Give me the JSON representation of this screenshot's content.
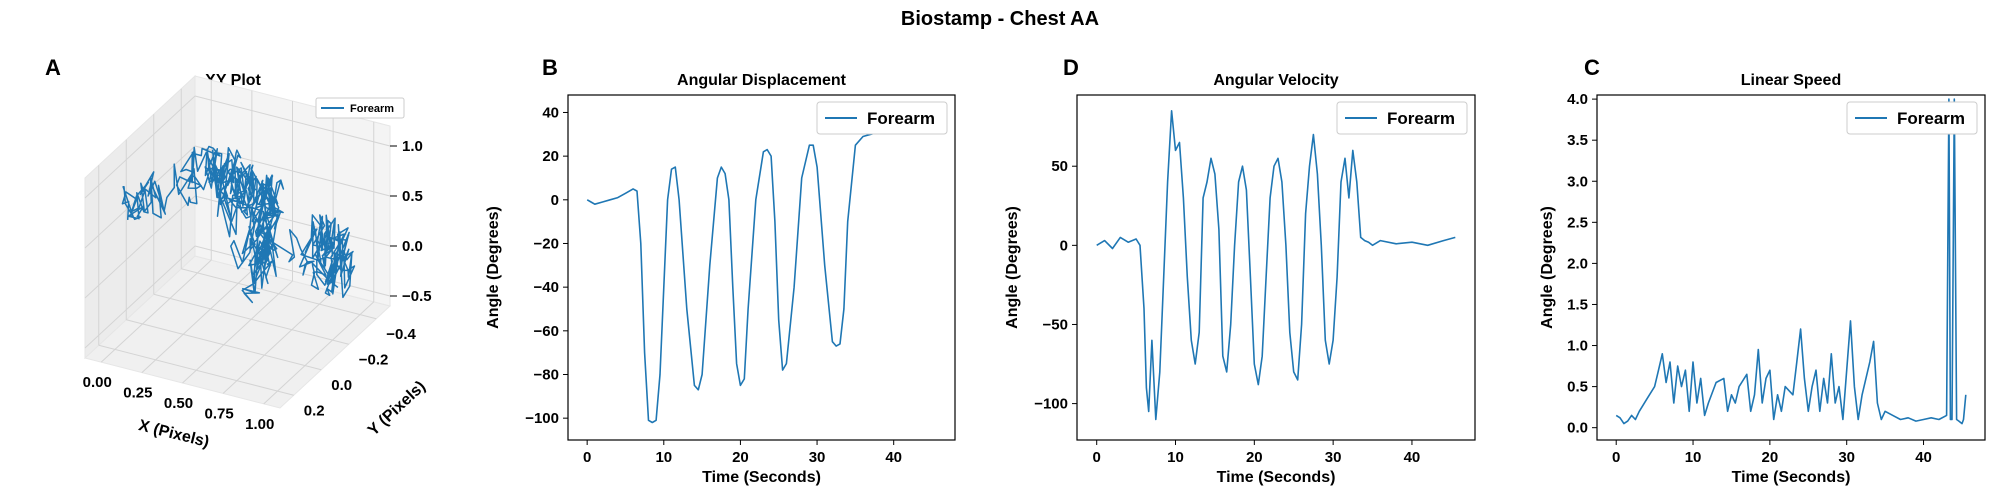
{
  "figure": {
    "title": "Biostamp - Chest AA"
  },
  "colors": {
    "series": "#1f77b4",
    "axis": "#000000",
    "grid3d": "#d0d0d0",
    "pane": "#f2f2f2"
  },
  "chart_data": [
    {
      "id": "xy",
      "panel_letter": "A",
      "type": "line3d",
      "title": "XY Plot",
      "xlabel": "X (Pixels)",
      "ylabel": "Y (Pixels)",
      "zlabel": "",
      "xticks": [
        "0.00",
        "0.25",
        "0.50",
        "0.75",
        "1.00"
      ],
      "yticks": [
        "-0.4",
        "-0.2",
        "0.0",
        "0.2"
      ],
      "zticks": [
        "-0.5",
        "0.0",
        "0.5",
        "1.0"
      ],
      "xlim": [
        -0.1,
        1.1
      ],
      "ylim": [
        -0.5,
        0.3
      ],
      "zlim": [
        -0.6,
        1.2
      ],
      "legend": "Forearm",
      "legend_position": "top-right",
      "grid": true,
      "series": [
        {
          "name": "Forearm",
          "note": "dense random-walk trajectory, x spans 0 to 1, y spans -0.4 to 0.2, z spans -0.5 to 1.0"
        }
      ]
    },
    {
      "id": "disp",
      "panel_letter": "B",
      "type": "line",
      "title": "Angular Displacement",
      "xlabel": "Time (Seconds)",
      "ylabel": "Angle (Degrees)",
      "xlim": [
        -2.5,
        48
      ],
      "ylim": [
        -110,
        48
      ],
      "xticks": [
        0,
        10,
        20,
        30,
        40
      ],
      "yticks": [
        -100,
        -80,
        -60,
        -40,
        -20,
        0,
        20,
        40
      ],
      "legend": "Forearm",
      "legend_position": "top-right",
      "series": [
        {
          "name": "Forearm",
          "x": [
            0,
            0.5,
            1,
            2,
            3,
            4,
            5,
            6,
            6.5,
            7,
            7.5,
            8,
            8.5,
            9,
            9.5,
            10,
            10.5,
            11,
            11.5,
            12,
            13,
            14,
            14.5,
            15,
            16,
            17,
            17.5,
            18,
            18.5,
            19,
            19.5,
            20,
            20.5,
            21,
            22,
            23,
            23.5,
            24,
            24.5,
            25,
            25.5,
            26,
            27,
            28,
            29,
            29.5,
            30,
            31,
            32,
            32.5,
            33,
            33.5,
            34,
            35,
            36,
            37,
            38,
            40,
            43,
            45.5
          ],
          "y": [
            0,
            -1,
            -2,
            -1,
            0,
            1,
            3,
            5,
            4,
            -20,
            -70,
            -101,
            -102,
            -101,
            -80,
            -40,
            0,
            14,
            15,
            0,
            -50,
            -85,
            -87,
            -80,
            -30,
            10,
            15,
            12,
            0,
            -40,
            -75,
            -85,
            -82,
            -50,
            0,
            22,
            23,
            20,
            -10,
            -55,
            -78,
            -75,
            -40,
            10,
            25,
            25,
            15,
            -30,
            -65,
            -67,
            -66,
            -50,
            -10,
            25,
            29,
            30,
            31,
            33,
            35,
            38
          ]
        }
      ]
    },
    {
      "id": "vel",
      "panel_letter": "D",
      "type": "line",
      "title": "Angular Velocity",
      "xlabel": "Time (Seconds)",
      "ylabel": "Angle (Degrees)",
      "xlim": [
        -2.5,
        48
      ],
      "ylim": [
        -123,
        95
      ],
      "xticks": [
        0,
        10,
        20,
        30,
        40
      ],
      "yticks": [
        -100,
        -50,
        0,
        50
      ],
      "legend": "Forearm",
      "legend_position": "top-right",
      "series": [
        {
          "name": "Forearm",
          "x": [
            0,
            1,
            2,
            3,
            4,
            5,
            5.5,
            6,
            6.3,
            6.6,
            7,
            7.5,
            8,
            8.5,
            9,
            9.5,
            10,
            10.5,
            11,
            11.5,
            12,
            12.5,
            13,
            13.5,
            14,
            14.5,
            15,
            15.5,
            16,
            16.5,
            17,
            17.5,
            18,
            18.5,
            19,
            19.5,
            20,
            20.5,
            21,
            21.5,
            22,
            22.5,
            23,
            23.5,
            24,
            24.5,
            25,
            25.5,
            26,
            26.5,
            27,
            27.5,
            28,
            28.5,
            29,
            29.5,
            30,
            30.5,
            31,
            31.5,
            32,
            32.5,
            33,
            33.5,
            34,
            34.5,
            35,
            36,
            38,
            40,
            42,
            44,
            45.5
          ],
          "y": [
            0,
            3,
            -2,
            5,
            2,
            4,
            0,
            -40,
            -90,
            -105,
            -60,
            -110,
            -80,
            -20,
            40,
            85,
            60,
            65,
            30,
            -20,
            -60,
            -75,
            -55,
            30,
            40,
            55,
            45,
            10,
            -70,
            -80,
            -50,
            0,
            40,
            50,
            35,
            -20,
            -75,
            -88,
            -70,
            -20,
            30,
            50,
            55,
            40,
            0,
            -55,
            -80,
            -85,
            -50,
            20,
            50,
            70,
            45,
            0,
            -60,
            -75,
            -60,
            -20,
            40,
            55,
            30,
            60,
            40,
            5,
            3,
            2,
            0,
            3,
            1,
            2,
            0,
            3,
            5
          ]
        }
      ]
    },
    {
      "id": "speed",
      "panel_letter": "C",
      "type": "line",
      "title": "Linear Speed",
      "xlabel": "Time (Seconds)",
      "ylabel": "Angle (Degrees)",
      "xlim": [
        -2.5,
        48
      ],
      "ylim": [
        -0.15,
        4.05
      ],
      "xticks": [
        0,
        10,
        20,
        30,
        40
      ],
      "yticks": [
        0.0,
        0.5,
        1.0,
        1.5,
        2.0,
        2.5,
        3.0,
        3.5,
        4.0
      ],
      "legend": "Forearm",
      "legend_position": "top-right",
      "series": [
        {
          "name": "Forearm",
          "x": [
            0,
            0.5,
            1,
            1.5,
            2,
            2.5,
            3,
            4,
            5,
            5.5,
            6,
            6.5,
            7,
            7.5,
            8,
            8.5,
            9,
            9.5,
            10,
            10.5,
            11,
            11.5,
            12,
            13,
            14,
            14.5,
            15,
            15.5,
            16,
            17,
            17.5,
            18,
            18.5,
            19,
            19.5,
            20,
            20.5,
            21,
            21.5,
            22,
            23,
            23.5,
            24,
            24.5,
            25,
            25.5,
            26,
            26.5,
            27,
            27.5,
            28,
            28.5,
            29,
            29.5,
            30,
            30.5,
            31,
            31.5,
            32,
            33,
            33.5,
            34,
            34.5,
            35,
            36,
            37,
            38,
            39,
            40,
            41,
            42,
            43,
            43.3,
            43.5,
            43.7,
            44,
            44.3,
            44.6,
            45,
            45.2,
            45.5
          ],
          "y": [
            0.15,
            0.12,
            0.05,
            0.08,
            0.15,
            0.1,
            0.2,
            0.35,
            0.5,
            0.7,
            0.9,
            0.55,
            0.8,
            0.3,
            0.75,
            0.5,
            0.7,
            0.2,
            0.8,
            0.3,
            0.6,
            0.15,
            0.3,
            0.55,
            0.6,
            0.2,
            0.4,
            0.3,
            0.5,
            0.65,
            0.2,
            0.4,
            0.95,
            0.3,
            0.6,
            0.7,
            0.1,
            0.4,
            0.2,
            0.5,
            0.4,
            0.8,
            1.2,
            0.6,
            0.2,
            0.5,
            0.7,
            0.2,
            0.6,
            0.3,
            0.9,
            0.3,
            0.5,
            0.1,
            0.7,
            1.3,
            0.5,
            0.1,
            0.4,
            0.8,
            1.05,
            0.3,
            0.1,
            0.2,
            0.15,
            0.1,
            0.12,
            0.08,
            0.1,
            0.12,
            0.1,
            0.15,
            4.0,
            0.1,
            0.1,
            4.0,
            0.1,
            0.08,
            0.05,
            0.1,
            0.4
          ]
        }
      ]
    }
  ]
}
